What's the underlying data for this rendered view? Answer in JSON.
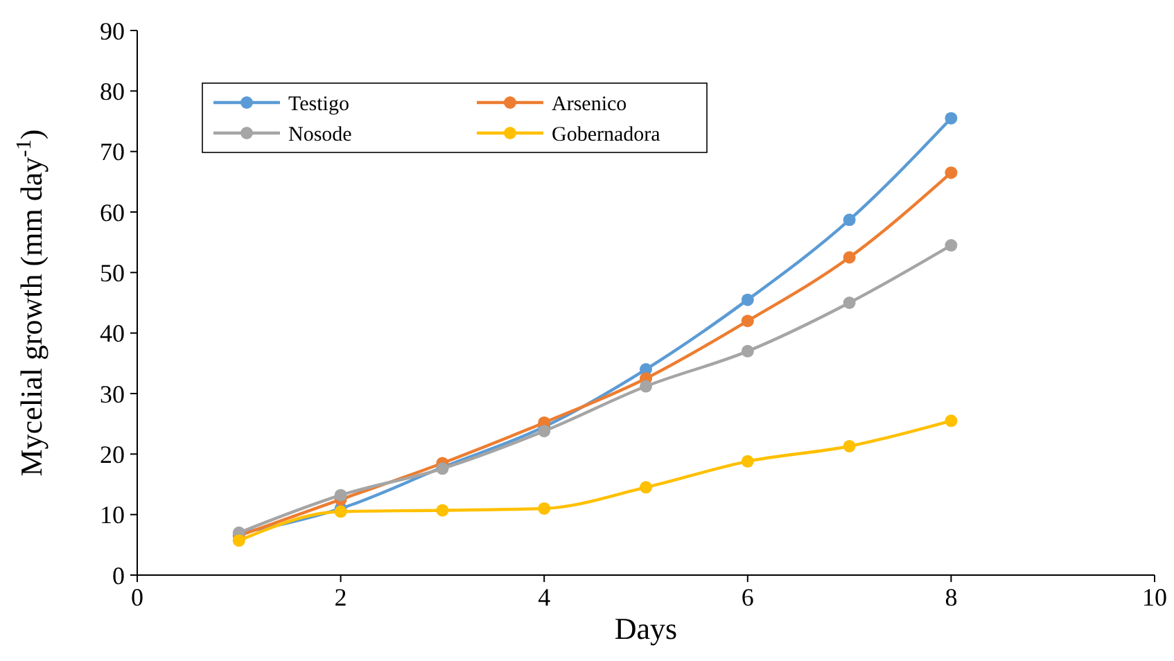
{
  "chart_data": {
    "type": "line",
    "xlabel": "Days",
    "ylabel": "Mycelial growth (mm day$^{-1}$)",
    "x": [
      1,
      2,
      3,
      4,
      5,
      6,
      7,
      8
    ],
    "xlim": [
      0,
      10
    ],
    "xticks": [
      0,
      2,
      4,
      6,
      8,
      10
    ],
    "ylim": [
      0,
      90
    ],
    "yticks": [
      0,
      10,
      20,
      30,
      40,
      50,
      60,
      70,
      80,
      90
    ],
    "grid": false,
    "legend": "top left",
    "marker": "circle",
    "line_style": "solid",
    "series": [
      {
        "name": "Testigo",
        "color": "#5b9bd5",
        "values": [
          6.9,
          11,
          17.8,
          24.5,
          34,
          45.5,
          58.7,
          75.5
        ]
      },
      {
        "name": "Arsenico",
        "color": "#ed7d31",
        "values": [
          6.5,
          12.5,
          18.5,
          25.2,
          32.5,
          42,
          52.5,
          66.5
        ]
      },
      {
        "name": "Nosode",
        "color": "#a5a5a5",
        "values": [
          7,
          13.2,
          17.6,
          23.8,
          31.2,
          37,
          45,
          54.5
        ]
      },
      {
        "name": "Gobernadora",
        "color": "#ffc000",
        "values": [
          5.7,
          10.5,
          10.7,
          11,
          14.5,
          18.8,
          21.3,
          25.5
        ]
      }
    ]
  }
}
